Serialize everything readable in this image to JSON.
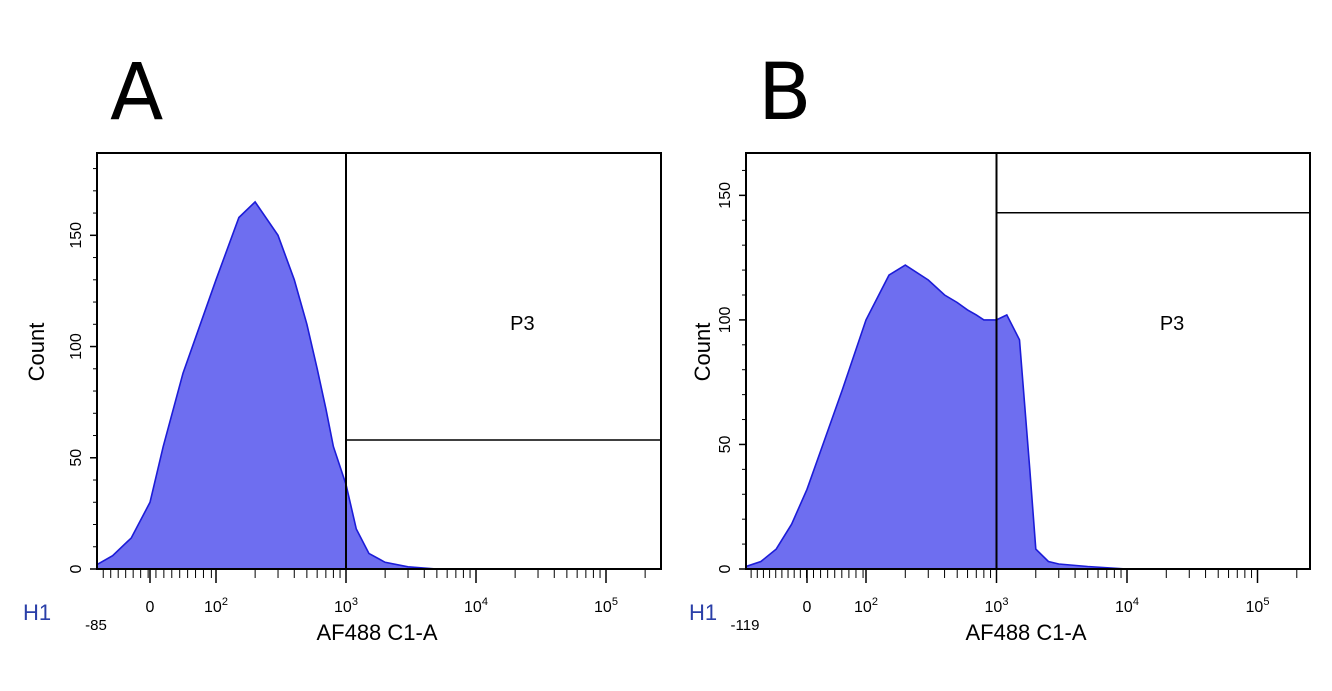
{
  "colors": {
    "fill": "#6e6ef0",
    "line": "#1c1cd8",
    "axis": "#000000",
    "hist_tag": "#2a3fa8"
  },
  "chart_data": [
    {
      "type": "histogram",
      "panel_label": "A",
      "tag": "H1",
      "xlabel": "AF488 C1-A",
      "ylabel": "Count",
      "xscale": "biexponential",
      "xlim": [
        -85,
        262144
      ],
      "x_min_label": "-85",
      "ylim": [
        0,
        187
      ],
      "yticks": [
        0,
        50,
        100,
        150
      ],
      "xtick_labels": [
        {
          "value": 0,
          "base": "0",
          "exp": ""
        },
        {
          "value": 100,
          "base": "10",
          "exp": "2"
        },
        {
          "value": 1000,
          "base": "10",
          "exp": "3"
        },
        {
          "value": 10000,
          "base": "10",
          "exp": "4"
        },
        {
          "value": 100000,
          "base": "10",
          "exp": "5"
        }
      ],
      "gate": {
        "name": "P3",
        "x_start": 1000,
        "x_end": 262144,
        "y": 58
      },
      "histogram": {
        "x": [
          -85,
          -60,
          -30,
          0,
          20,
          50,
          100,
          150,
          200,
          300,
          400,
          500,
          600,
          700,
          800,
          1000,
          1200,
          1500,
          2000,
          3000,
          5000,
          10000
        ],
        "count": [
          2,
          6,
          14,
          30,
          55,
          88,
          130,
          158,
          165,
          150,
          130,
          110,
          90,
          72,
          55,
          38,
          18,
          7,
          3,
          1,
          0,
          0
        ]
      }
    },
    {
      "type": "histogram",
      "panel_label": "B",
      "tag": "H1",
      "xlabel": "AF488 C1-A",
      "ylabel": "Count",
      "xscale": "biexponential",
      "xlim": [
        -119,
        262144
      ],
      "x_min_label": "-119",
      "ylim": [
        0,
        167
      ],
      "yticks": [
        0,
        50,
        100,
        150
      ],
      "xtick_labels": [
        {
          "value": 0,
          "base": "0",
          "exp": ""
        },
        {
          "value": 100,
          "base": "10",
          "exp": "2"
        },
        {
          "value": 1000,
          "base": "10",
          "exp": "3"
        },
        {
          "value": 10000,
          "base": "10",
          "exp": "4"
        },
        {
          "value": 100000,
          "base": "10",
          "exp": "5"
        }
      ],
      "gate": {
        "name": "P3",
        "x_start": 1000,
        "x_end": 262144,
        "y": 143
      },
      "histogram": {
        "x": [
          -119,
          -90,
          -60,
          -30,
          0,
          30,
          60,
          100,
          150,
          200,
          300,
          400,
          500,
          600,
          700,
          800,
          1000,
          1200,
          1500,
          1800,
          2000,
          2500,
          3000,
          5000,
          10000
        ],
        "count": [
          1,
          3,
          8,
          18,
          32,
          52,
          72,
          100,
          118,
          122,
          116,
          110,
          107,
          104,
          102,
          100,
          100,
          102,
          92,
          40,
          8,
          3,
          2,
          1,
          0
        ]
      }
    }
  ]
}
